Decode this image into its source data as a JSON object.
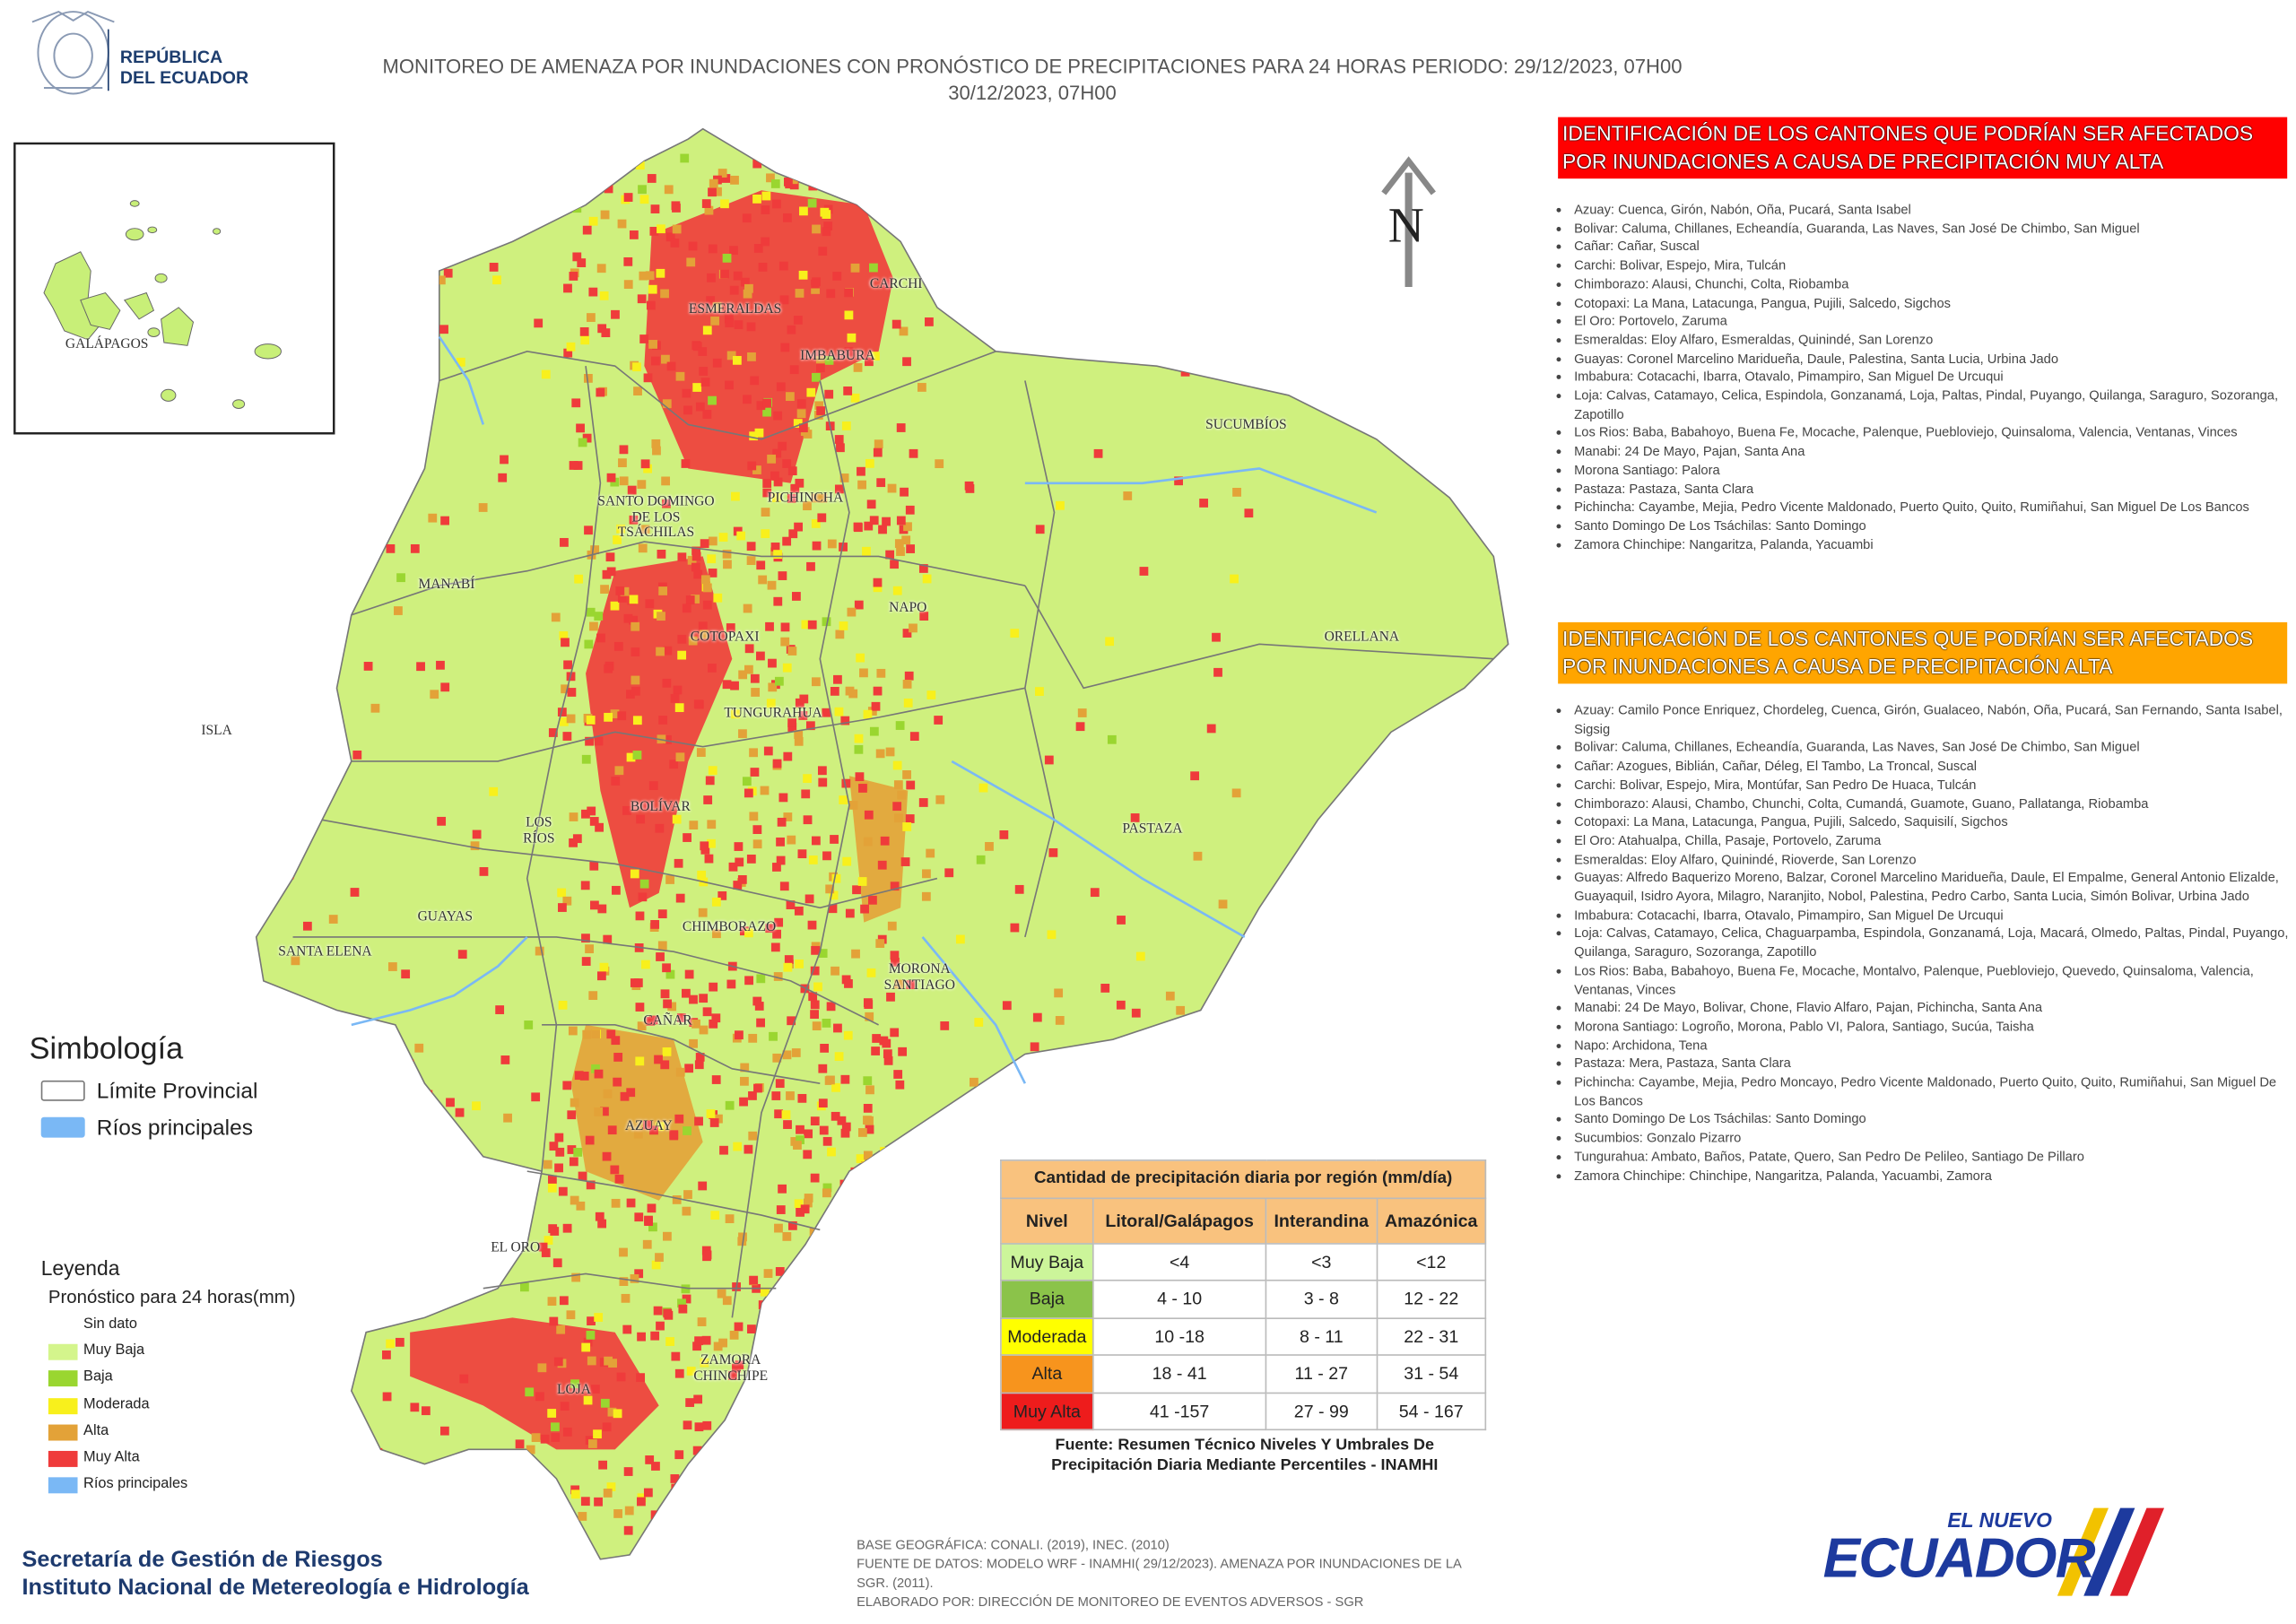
{
  "header": {
    "logo_lines": [
      "REPÚBLICA",
      "DEL ECUADOR"
    ],
    "title_lines": [
      "MONITOREO DE AMENAZA POR INUNDACIONES  CON PRONÓSTICO DE  PRECIPITACIONES PARA 24 HORAS  PERIODO: 29/12/2023, 07H00",
      "30/12/2023, 07H00"
    ]
  },
  "inset": {
    "label": "GALÁPAGOS"
  },
  "map": {
    "north": "N",
    "provinces": [
      "ESMERALDAS",
      "CARCHI",
      "IMBABURA",
      "SUCUMBÍOS",
      "SANTO DOMINGO\nDE LOS\nTSÁCHILAS",
      "PICHINCHA",
      "MANABÍ",
      "NAPO",
      "ORELLANA",
      "COTOPAXI",
      "ISLA",
      "TUNGURAHUA",
      "PASTAZA",
      "BOLÍVAR",
      "LOS\nRÍOS",
      "CHIMBORAZO",
      "GUAYAS",
      "SANTA ELENA",
      "MORONA\nSANTIAGO",
      "CAÑAR",
      "AZUAY",
      "EL ORO",
      "ZAMORA\nCHINCHIPE",
      "LOJA"
    ]
  },
  "alerts": [
    {
      "title": "IDENTIFICACIÓN DE LOS CANTONES QUE PODRÍAN SER AFECTADOS POR INUNDACIONES  A CAUSA DE PRECIPITACIÓN MUY ALTA",
      "color": "#ff0000",
      "items": [
        "Azuay: Cuenca, Girón, Nabón, Oña, Pucará, Santa Isabel",
        "Bolivar: Caluma, Chillanes, Echeandía, Guaranda, Las Naves, San José De Chimbo, San Miguel",
        "Cañar: Cañar, Suscal",
        "Carchi: Bolivar, Espejo, Mira, Tulcán",
        "Chimborazo: Alausi, Chunchi, Colta, Riobamba",
        "Cotopaxi: La Mana, Latacunga, Pangua, Pujili, Salcedo, Sigchos",
        "El Oro: Portovelo, Zaruma",
        "Esmeraldas: Eloy Alfaro, Esmeraldas, Quinindé, San Lorenzo",
        "Guayas: Coronel Marcelino Maridueña, Daule, Palestina, Santa Lucia, Urbina Jado",
        "Imbabura: Cotacachi, Ibarra, Otavalo, Pimampiro, San Miguel De Urcuqui",
        "Loja: Calvas, Catamayo, Celica, Espindola, Gonzanamá, Loja, Paltas, Pindal, Puyango, Quilanga, Saraguro, Sozoranga, Zapotillo",
        "Los Rios: Baba, Babahoyo, Buena Fe, Mocache, Palenque, Puebloviejo, Quinsaloma, Valencia, Ventanas, Vinces",
        "Manabi: 24 De Mayo, Pajan, Santa Ana",
        "Morona Santiago: Palora",
        "Pastaza: Pastaza, Santa Clara",
        "Pichincha: Cayambe, Mejia, Pedro Vicente Maldonado, Puerto Quito, Quito, Rumiñahui, San Miguel De Los Bancos",
        "Santo Domingo De Los Tsáchilas: Santo Domingo",
        "Zamora Chinchipe: Nangaritza, Palanda, Yacuambi"
      ]
    },
    {
      "title": "IDENTIFICACIÓN DE LOS CANTONES QUE  PODRÍAN SER AFECTADOS POR INUNDACIONES  A CAUSA DE PRECIPITACIÓN  ALTA",
      "color": "#ffa500",
      "items": [
        "Azuay: Camilo Ponce Enriquez, Chordeleg, Cuenca, Girón, Gualaceo, Nabón, Oña, Pucará, San Fernando, Santa Isabel, Sigsig",
        "Bolivar: Caluma, Chillanes, Echeandía, Guaranda, Las Naves, San José De Chimbo, San Miguel",
        "Cañar: Azogues, Biblián, Cañar, Déleg, El Tambo, La Troncal, Suscal",
        "Carchi: Bolivar, Espejo, Mira, Montúfar, San Pedro De Huaca, Tulcán",
        "Chimborazo: Alausi, Chambo, Chunchi, Colta, Cumandá, Guamote, Guano, Pallatanga, Riobamba",
        "Cotopaxi: La Mana, Latacunga, Pangua, Pujili, Salcedo, Saquisilí, Sigchos",
        "El Oro: Atahualpa, Chilla, Pasaje, Portovelo, Zaruma",
        "Esmeraldas: Eloy Alfaro, Quinindé, Rioverde, San Lorenzo",
        "Guayas: Alfredo Baquerizo Moreno, Balzar, Coronel Marcelino Maridueña, Daule, El Empalme, General Antonio Elizalde, Guayaquil, Isidro Ayora, Milagro, Naranjito, Nobol, Palestina, Pedro Carbo, Santa Lucia, Simón Bolivar, Urbina Jado",
        "Imbabura: Cotacachi, Ibarra, Otavalo, Pimampiro, San Miguel De Urcuqui",
        "Loja: Calvas, Catamayo, Celica, Chaguarpamba, Espindola, Gonzanamá, Loja, Macará, Olmedo, Paltas, Pindal, Puyango, Quilanga, Saraguro, Sozoranga, Zapotillo",
        "Los Rios: Baba, Babahoyo, Buena Fe, Mocache, Montalvo, Palenque, Puebloviejo, Quevedo, Quinsaloma, Valencia, Ventanas, Vinces",
        "Manabi: 24 De Mayo, Bolivar, Chone, Flavio Alfaro, Pajan, Pichincha, Santa Ana",
        "Morona Santiago: Logroño, Morona, Pablo VI, Palora, Santiago, Sucúa, Taisha",
        "Napo: Archidona, Tena",
        "Pastaza: Mera, Pastaza, Santa Clara",
        "Pichincha: Cayambe, Mejia, Pedro Moncayo, Pedro Vicente Maldonado, Puerto Quito, Quito, Rumiñahui, San Miguel De Los Bancos",
        "Santo Domingo De Los Tsáchilas: Santo Domingo",
        "Sucumbios: Gonzalo Pizarro",
        "Tungurahua: Ambato, Baños, Patate, Quero, San Pedro De Pelileo, Santiago De Pillaro",
        "Zamora Chinchipe: Chinchipe, Nangaritza, Palanda, Yacuambi, Zamora"
      ]
    }
  ],
  "symbology": {
    "title": "Simbología",
    "items": [
      {
        "label": "Límite Provincial",
        "color": "#ffffff"
      },
      {
        "label": "Ríos principales",
        "color": "#7ab8f5"
      }
    ]
  },
  "legend": {
    "title": "Leyenda",
    "subtitle": "Pronóstico para 24 horas(mm)",
    "items": [
      {
        "label": "Sin dato",
        "color": "#ffffff"
      },
      {
        "label": "Muy Baja",
        "color": "#d4f58c"
      },
      {
        "label": "Baja",
        "color": "#9ad630"
      },
      {
        "label": "Moderada",
        "color": "#f8f01c"
      },
      {
        "label": "Alta",
        "color": "#e3a238"
      },
      {
        "label": "Muy Alta",
        "color": "#ef3b3b"
      },
      {
        "label": "Ríos principales",
        "color": "#7ab8f5"
      }
    ]
  },
  "table": {
    "title": "Cantidad de precipitación diaria por región (mm/día)",
    "columns": [
      "Nivel",
      "Litoral/Galápagos",
      "Interandina",
      "Amazónica"
    ],
    "rows": [
      [
        "Muy Baja",
        "<4",
        "<3",
        "<12"
      ],
      [
        "Baja",
        "4 - 10",
        "3 - 8",
        "12 - 22"
      ],
      [
        "Moderada",
        "10 -18",
        "8 - 11",
        "22 - 31"
      ],
      [
        "Alta",
        "18 - 41",
        "11 - 27",
        "31 - 54"
      ],
      [
        "Muy Alta",
        "41 -157",
        "27 - 99",
        "54 - 167"
      ]
    ],
    "row_colors": [
      "#ccf59a",
      "#8bc34a",
      "#ffff00",
      "#f7941d",
      "#ee1c1c"
    ],
    "source_lines": [
      "Fuente: Resumen Técnico Niveles Y Umbrales De",
      "Precipitación Diaria Mediante Percentiles - INAMHI"
    ]
  },
  "footer": {
    "institutions": [
      "Secretaría de Gestión de Riesgos",
      "Instituto Nacional de Metereología e Hidrología"
    ],
    "notes": [
      "BASE GEOGRÁFICA: CONALI. (2019), INEC. (2010)",
      "FUENTE DE DATOS: MODELO WRF - INAMHI( 29/12/2023).  AMENAZA POR INUNDACIONES DE LA SGR. (2011).",
      "ELABORADO POR: DIRECCIÓN DE MONITOREO DE EVENTOS ADVERSOS - SGR"
    ],
    "brand": [
      "EL NUEVO",
      "ECUADOR"
    ]
  }
}
